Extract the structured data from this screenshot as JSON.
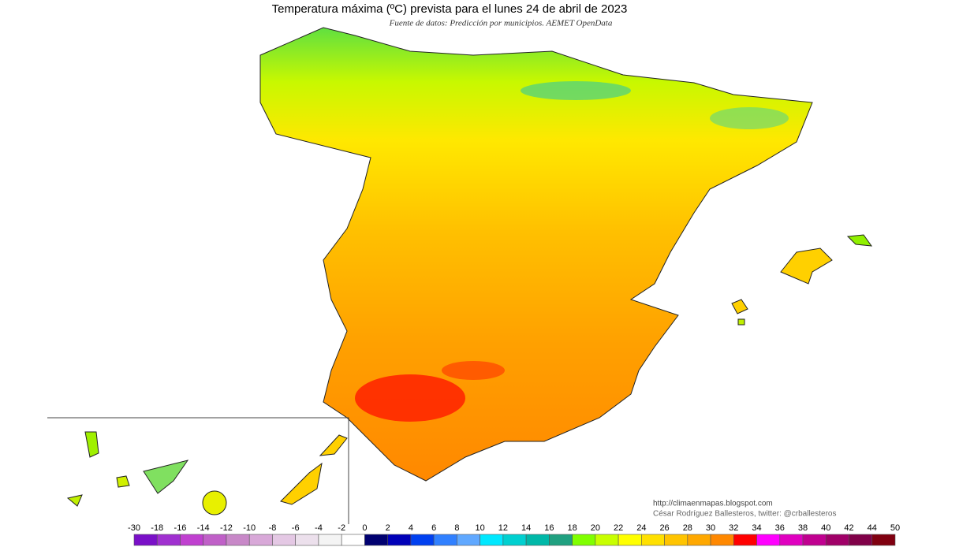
{
  "title": "Temperatura máxima (ºC) prevista para el lunes 24 de abril de 2023",
  "subtitle": "Fuente de datos: Predicción por municipios. AEMET OpenData",
  "credits": [
    "http://climaenmapas.blogspot.com",
    "César Rodríguez Ballesteros, twitter: @crballesteros"
  ],
  "legend": {
    "ticks": [
      -30,
      -18,
      -16,
      -14,
      -12,
      -10,
      -8,
      -6,
      -4,
      -2,
      0,
      2,
      4,
      6,
      8,
      10,
      12,
      14,
      16,
      18,
      20,
      22,
      24,
      26,
      28,
      30,
      32,
      34,
      36,
      38,
      40,
      42,
      44,
      50
    ],
    "colors": [
      "#7a10c8",
      "#a030d0",
      "#c040d0",
      "#c060c8",
      "#c888c8",
      "#d8a8d8",
      "#e4c8e4",
      "#ece0ec",
      "#f4f4f4",
      "#ffffff",
      "#000070",
      "#0000b8",
      "#0040f0",
      "#3080ff",
      "#60a8ff",
      "#00e8ff",
      "#00d0d0",
      "#00b8a8",
      "#20a080",
      "#80ff00",
      "#c8ff00",
      "#ffff00",
      "#ffe000",
      "#ffc400",
      "#ffa800",
      "#ff8800",
      "#ff0000",
      "#ff00ff",
      "#e000c0",
      "#c00090",
      "#a00068",
      "#800048",
      "#800010"
    ]
  }
}
